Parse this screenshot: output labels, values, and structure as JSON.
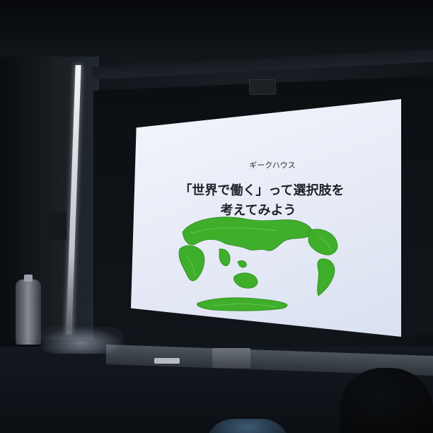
{
  "photo": {
    "description_type": "photograph of a presentation screen in a dark room"
  },
  "slide": {
    "subtitle": "ギークハウス",
    "title_line_1": "「世界で働く」って選択肢を",
    "title_line_2": "考えてみよう",
    "map_color": "#3fae2a",
    "background_color": "#e8ecf6"
  }
}
